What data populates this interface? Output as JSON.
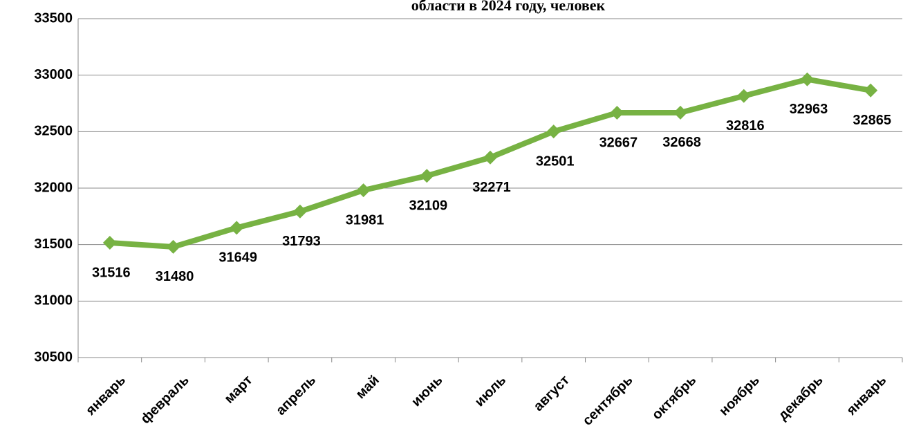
{
  "chart_data": {
    "type": "line",
    "title": "области в 2024 году, человек",
    "categories": [
      "январь",
      "февраль",
      "март",
      "апрель",
      "май",
      "июнь",
      "июль",
      "август",
      "сентябрь",
      "октябрь",
      "ноябрь",
      "декабрь",
      "январь"
    ],
    "values": [
      31516,
      31480,
      31649,
      31793,
      31981,
      32109,
      32271,
      32501,
      32667,
      32668,
      32816,
      32963,
      32865
    ],
    "color": "#77b243",
    "ylim": [
      30500,
      33500
    ],
    "yticks": [
      30500,
      31000,
      31500,
      32000,
      32500,
      33000,
      33500
    ],
    "grid": true
  }
}
